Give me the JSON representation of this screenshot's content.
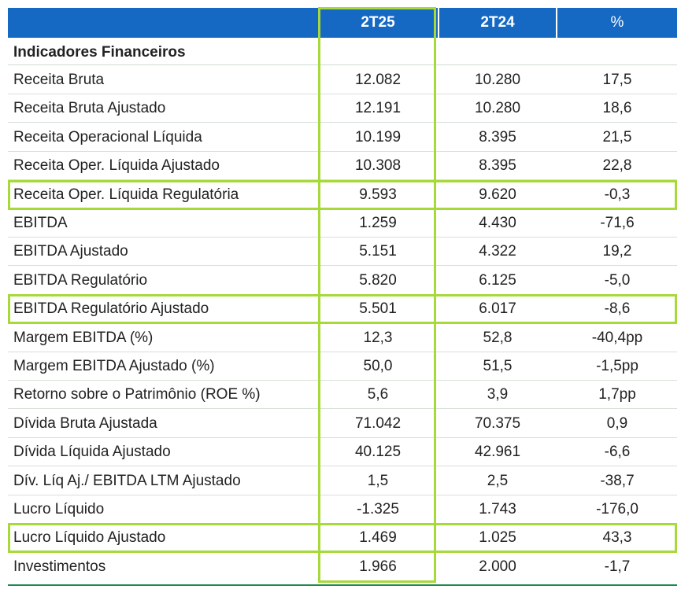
{
  "header": {
    "col1": "2T25",
    "col2": "2T24",
    "col3": "%"
  },
  "section_title": "Indicadores Financeiros",
  "rows": [
    {
      "label": "Receita Bruta",
      "v1": "12.082",
      "v2": "10.280",
      "pct": "17,5"
    },
    {
      "label": "Receita Bruta Ajustado",
      "v1": "12.191",
      "v2": "10.280",
      "pct": "18,6"
    },
    {
      "label": "Receita Operacional Líquida",
      "v1": "10.199",
      "v2": "8.395",
      "pct": "21,5"
    },
    {
      "label": "Receita Oper. Líquida Ajustado",
      "v1": "10.308",
      "v2": "8.395",
      "pct": "22,8"
    },
    {
      "label": "Receita Oper. Líquida Regulatória",
      "v1": "9.593",
      "v2": "9.620",
      "pct": "-0,3"
    },
    {
      "label": "EBITDA",
      "v1": "1.259",
      "v2": "4.430",
      "pct": "-71,6"
    },
    {
      "label": "EBITDA Ajustado",
      "v1": "5.151",
      "v2": "4.322",
      "pct": "19,2"
    },
    {
      "label": "EBITDA Regulatório",
      "v1": "5.820",
      "v2": "6.125",
      "pct": "-5,0"
    },
    {
      "label": "EBITDA Regulatório Ajustado",
      "v1": "5.501",
      "v2": "6.017",
      "pct": "-8,6"
    },
    {
      "label": "Margem EBITDA (%)",
      "v1": "12,3",
      "v2": "52,8",
      "pct": "-40,4pp"
    },
    {
      "label": "Margem EBITDA Ajustado (%)",
      "v1": "50,0",
      "v2": "51,5",
      "pct": "-1,5pp"
    },
    {
      "label": "Retorno sobre o Patrimônio (ROE %)",
      "v1": "5,6",
      "v2": "3,9",
      "pct": "1,7pp"
    },
    {
      "label": "Dívida Bruta Ajustada",
      "v1": "71.042",
      "v2": "70.375",
      "pct": "0,9"
    },
    {
      "label": "Dívida Líquida Ajustado",
      "v1": "40.125",
      "v2": "42.961",
      "pct": "-6,6"
    },
    {
      "label": "Dív. Líq Aj./ EBITDA LTM Ajustado",
      "v1": "1,5",
      "v2": "2,5",
      "pct": "-38,7"
    },
    {
      "label": "Lucro Líquido",
      "v1": "-1.325",
      "v2": "1.743",
      "pct": "-176,0"
    },
    {
      "label": "Lucro Líquido Ajustado",
      "v1": "1.469",
      "v2": "1.025",
      "pct": "43,3"
    },
    {
      "label": "Investimentos",
      "v1": "1.966",
      "v2": "2.000",
      "pct": "-1,7"
    }
  ],
  "highlighted_rows": [
    4,
    8,
    16
  ],
  "colors": {
    "header_bg": "#1669c3",
    "highlight": "#a7d93b",
    "bottom_rule": "#1f8a4c"
  }
}
